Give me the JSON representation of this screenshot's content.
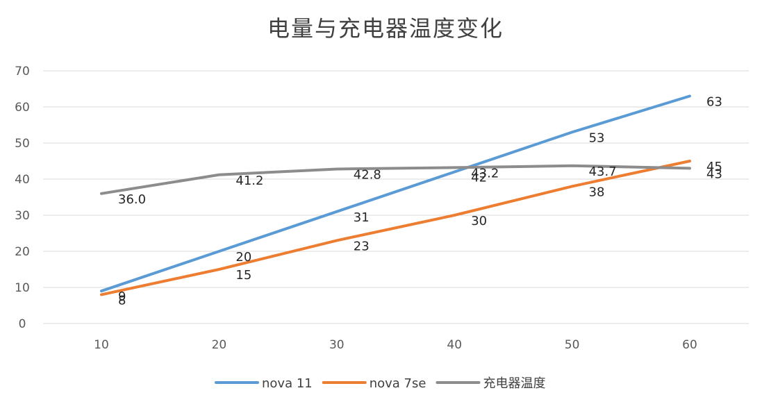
{
  "chart_data": {
    "type": "line",
    "title": "电量与充电器温度变化",
    "xlabel": "",
    "ylabel": "",
    "x": [
      10,
      20,
      30,
      40,
      50,
      60
    ],
    "xlim": [
      10,
      60
    ],
    "ylim": [
      0,
      70
    ],
    "yticks": [
      0,
      10,
      20,
      30,
      40,
      50,
      60,
      70
    ],
    "grid": true,
    "legend_position": "bottom",
    "series": [
      {
        "name": "nova 11",
        "color": "#5b9bd5",
        "values": [
          9,
          20,
          31,
          42,
          53,
          63
        ],
        "labels": [
          "9",
          "20",
          "31",
          "42",
          "53",
          "63"
        ]
      },
      {
        "name": "nova 7se",
        "color": "#ed7d31",
        "values": [
          8,
          15,
          23,
          30,
          38,
          45
        ],
        "labels": [
          "8",
          "15",
          "23",
          "30",
          "38",
          "45"
        ]
      },
      {
        "name": "充电器温度",
        "color": "#8c8c8c",
        "values": [
          36.0,
          41.2,
          42.8,
          43.2,
          43.7,
          43
        ],
        "labels": [
          "36.0",
          "41.2",
          "42.8",
          "43.2",
          "43.7",
          "43"
        ]
      }
    ]
  }
}
